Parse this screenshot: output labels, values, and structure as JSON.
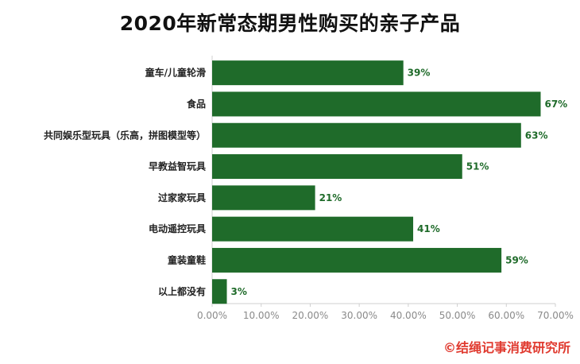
{
  "title": "2020年新常态期男性购买的亲子产品",
  "credit": "©结绳记事消费研究所",
  "colors": {
    "bar": "#1f6b2a",
    "value_label": "#1f6b2a",
    "credit": "#e03a2f",
    "axis": "#cfcfcf",
    "tick": "#8a8a8a"
  },
  "chart_data": {
    "type": "bar",
    "orientation": "horizontal",
    "title": "2020年新常态期男性购买的亲子产品",
    "xlabel": "",
    "ylabel": "",
    "categories": [
      "童车/儿童轮滑",
      "食品",
      "共同娱乐型玩具（乐高，拼图模型等）",
      "早教益智玩具",
      "过家家玩具",
      "电动遥控玩具",
      "童装童鞋",
      "以上都没有"
    ],
    "values": [
      39,
      67,
      63,
      51,
      21,
      41,
      59,
      3
    ],
    "value_labels": [
      "39%",
      "67%",
      "63%",
      "51%",
      "21%",
      "41%",
      "59%",
      "3%"
    ],
    "xlim": [
      0,
      70
    ],
    "xticks": [
      0,
      10,
      20,
      30,
      40,
      50,
      60,
      70
    ],
    "xtick_labels": [
      "0.00%",
      "10.00%",
      "20.00%",
      "30.00%",
      "40.00%",
      "50.00%",
      "60.00%",
      "70.00%"
    ],
    "grid": false,
    "legend": "none"
  }
}
